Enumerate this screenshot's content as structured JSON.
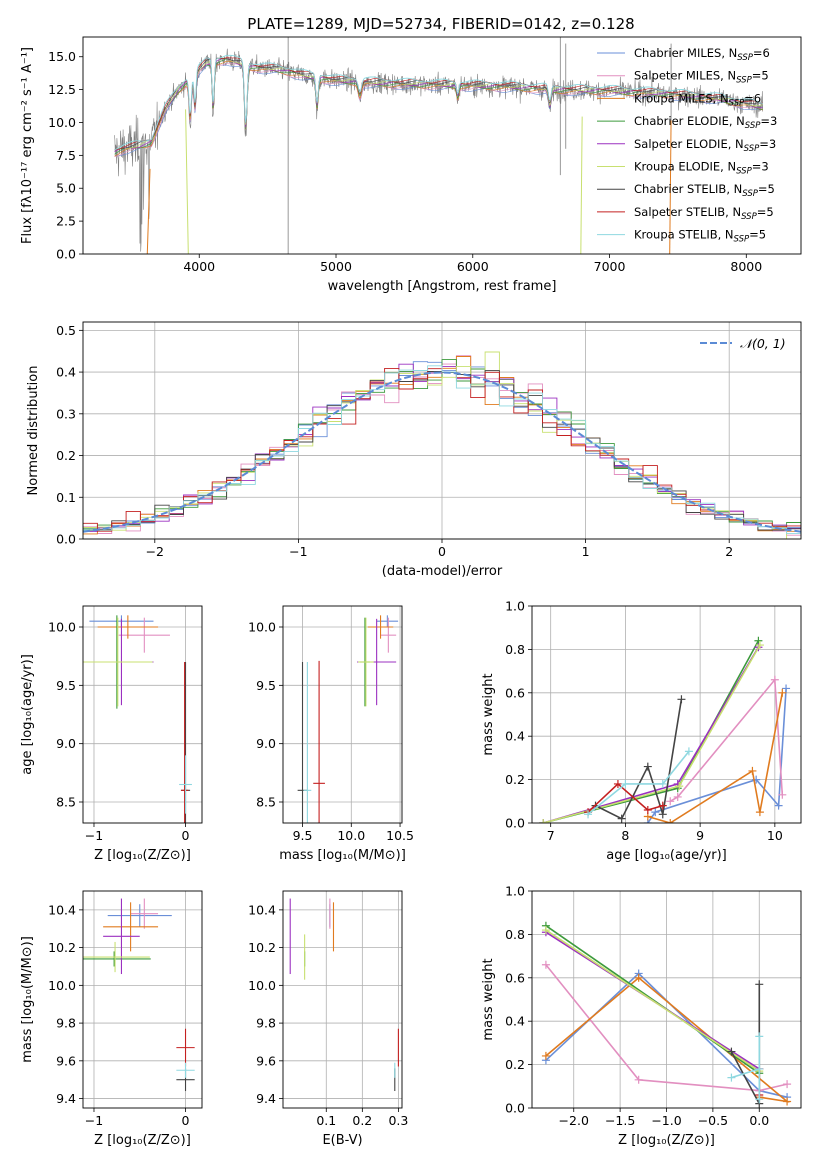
{
  "figure": {
    "title": "PLATE=1289, MJD=52734, FIBERID=0142, z=0.128"
  },
  "colors": {
    "Chabrier MILES": "#6a8fd8",
    "Salpeter MILES": "#e28fc0",
    "Kroupa MILES": "#e07b1f",
    "Chabrier ELODIE": "#3c9a3c",
    "Salpeter ELODIE": "#9b30c0",
    "Kroupa ELODIE": "#c8e070",
    "Chabrier STELIB": "#444444",
    "Salpeter STELIB": "#c42020",
    "Kroupa STELIB": "#8fd8e0",
    "gaussian": "#5b8bd5",
    "data": "#7f7f7f"
  },
  "chart_data": [
    {
      "id": "spectrum",
      "type": "line",
      "xlabel": "wavelength [Angstrom, rest frame]",
      "ylabel": "Flux [fλ10⁻¹⁷ erg cm⁻² s⁻¹ A⁻¹]",
      "xlim": [
        3150,
        8400
      ],
      "ylim": [
        0,
        16.5
      ],
      "xticks": [
        4000,
        5000,
        6000,
        7000,
        8000
      ],
      "yticks": [
        0.0,
        2.5,
        5.0,
        7.5,
        10.0,
        12.5,
        15.0
      ],
      "legend_position": "top-right",
      "legend": [
        {
          "label": "Chabrier MILES, N",
          "sub": "SSP",
          "tail": "=6"
        },
        {
          "label": "Salpeter MILES, N",
          "sub": "SSP",
          "tail": "=5"
        },
        {
          "label": "Kroupa MILES, N",
          "sub": "SSP",
          "tail": "=6"
        },
        {
          "label": "Chabrier ELODIE, N",
          "sub": "SSP",
          "tail": "=3"
        },
        {
          "label": "Salpeter ELODIE, N",
          "sub": "SSP",
          "tail": "=3"
        },
        {
          "label": "Kroupa ELODIE, N",
          "sub": "SSP",
          "tail": "=3"
        },
        {
          "label": "Chabrier STELIB, N",
          "sub": "SSP",
          "tail": "=5"
        },
        {
          "label": "Salpeter STELIB, N",
          "sub": "SSP",
          "tail": "=5"
        },
        {
          "label": "Kroupa STELIB, N",
          "sub": "SSP",
          "tail": "=5"
        }
      ],
      "continuum_x": [
        3350,
        3450,
        3550,
        3650,
        3750,
        3850,
        3950,
        4050,
        4200,
        4400,
        4600,
        4800,
        5000,
        5300,
        5600,
        6000,
        6300,
        6600,
        7000,
        7400,
        7800,
        8100
      ],
      "continuum_y": [
        7.6,
        8.0,
        8.2,
        8.5,
        11.0,
        12.5,
        13.5,
        14.5,
        14.8,
        14.2,
        14.0,
        13.5,
        13.2,
        13.0,
        12.9,
        12.8,
        12.7,
        12.5,
        12.4,
        12.2,
        11.8,
        11.2
      ],
      "model_edges": [
        [
          3640,
          3620
        ],
        [
          3900,
          3920
        ],
        [
          6800,
          6790
        ],
        [
          7450,
          7440
        ]
      ]
    },
    {
      "id": "residuals",
      "type": "step",
      "xlabel": "(data-model)/error",
      "ylabel": "Normed distribution",
      "xlim": [
        -2.5,
        2.5
      ],
      "ylim": [
        0,
        0.52
      ],
      "xticks": [
        -2,
        -1,
        0,
        1,
        2
      ],
      "yticks": [
        0.0,
        0.1,
        0.2,
        0.3,
        0.4,
        0.5
      ],
      "bin_width": 0.1,
      "legend": "𝒩(0, 1)"
    },
    {
      "id": "age_vs_Z",
      "type": "errorbar",
      "xlabel": "Z [log₁₀(Z/Z⊙)]",
      "ylabel": "age  [log₁₀(age/yr)]",
      "xlim": [
        -1.12,
        0.18
      ],
      "ylim": [
        8.32,
        10.18
      ],
      "xticks": [
        -1,
        0
      ],
      "yticks": [
        8.5,
        9.0,
        9.5,
        10.0
      ],
      "points": [
        {
          "s": "Chabrier MILES",
          "x": -0.7,
          "y": 10.05,
          "xe": 0.35,
          "ye": 0.05
        },
        {
          "s": "Salpeter MILES",
          "x": -0.45,
          "y": 9.93,
          "xe": 0.28,
          "ye": 0.15
        },
        {
          "s": "Kroupa MILES",
          "x": -0.63,
          "y": 10.0,
          "xe": 0.33,
          "ye": 0.1
        },
        {
          "s": "Chabrier ELODIE",
          "x": -0.75,
          "y": 9.7,
          "xe": 0.4,
          "ye": 0.4
        },
        {
          "s": "Salpeter ELODIE",
          "x": -0.7,
          "y": 9.7,
          "xe": 0.35,
          "ye": 0.37
        },
        {
          "s": "Kroupa ELODIE",
          "x": -0.74,
          "y": 9.7,
          "xe": 0.38,
          "ye": 0.38
        },
        {
          "s": "Chabrier STELIB",
          "x": 0.0,
          "y": 8.6,
          "xe": 0.05,
          "ye": 1.1
        },
        {
          "s": "Salpeter STELIB",
          "x": -0.01,
          "y": 8.6,
          "xe": 0.04,
          "ye": 1.1
        },
        {
          "s": "Kroupa STELIB",
          "x": 0.0,
          "y": 8.65,
          "xe": 0.07,
          "ye": 0.25
        }
      ]
    },
    {
      "id": "age_vs_mass",
      "type": "errorbar",
      "xlabel": "mass [log₁₀(M/M⊙)]",
      "ylabel": "",
      "xlim": [
        9.3,
        10.52
      ],
      "ylim": [
        8.32,
        10.18
      ],
      "xticks": [
        9.5,
        10.0,
        10.5
      ],
      "yticks": [
        8.5,
        9.0,
        9.5,
        10.0
      ],
      "points": [
        {
          "s": "Chabrier MILES",
          "x": 10.37,
          "y": 10.05,
          "xe": 0.11,
          "ye": 0.05
        },
        {
          "s": "Salpeter MILES",
          "x": 10.38,
          "y": 9.93,
          "xe": 0.08,
          "ye": 0.15
        },
        {
          "s": "Kroupa MILES",
          "x": 10.3,
          "y": 10.0,
          "xe": 0.13,
          "ye": 0.1
        },
        {
          "s": "Chabrier ELODIE",
          "x": 10.14,
          "y": 9.7,
          "xe": 0.05,
          "ye": 0.38
        },
        {
          "s": "Salpeter ELODIE",
          "x": 10.26,
          "y": 9.7,
          "xe": 0.2,
          "ye": 0.37
        },
        {
          "s": "Kroupa ELODIE",
          "x": 10.15,
          "y": 9.7,
          "xe": 0.08,
          "ye": 0.38
        },
        {
          "s": "Chabrier STELIB",
          "x": 9.5,
          "y": 8.6,
          "xe": 0.05,
          "ye": 1.1
        },
        {
          "s": "Salpeter STELIB",
          "x": 9.67,
          "y": 8.66,
          "xe": 0.06,
          "ye": 1.05
        },
        {
          "s": "Kroupa STELIB",
          "x": 9.55,
          "y": 8.6,
          "xe": 0.04,
          "ye": 1.1
        }
      ]
    },
    {
      "id": "weight_vs_age",
      "type": "line",
      "xlabel": "age  [log₁₀(age/yr)]",
      "ylabel": "mass weight",
      "xlim": [
        6.75,
        10.35
      ],
      "ylim": [
        0,
        1.0
      ],
      "xticks": [
        7,
        8,
        9,
        10
      ],
      "yticks": [
        0.0,
        0.2,
        0.4,
        0.6,
        0.8,
        1.0
      ],
      "series": [
        {
          "s": "Chabrier MILES",
          "x": [
            8.3,
            8.4,
            9.75,
            10.05,
            10.15
          ],
          "y": [
            0.0,
            0.05,
            0.2,
            0.08,
            0.62
          ]
        },
        {
          "s": "Salpeter MILES",
          "x": [
            8.6,
            8.7,
            10.0,
            10.1
          ],
          "y": [
            0.1,
            0.12,
            0.66,
            0.13
          ]
        },
        {
          "s": "Kroupa MILES",
          "x": [
            8.3,
            8.6,
            9.7,
            9.8,
            10.1
          ],
          "y": [
            0.03,
            0.0,
            0.24,
            0.05,
            0.6
          ]
        },
        {
          "s": "Chabrier ELODIE",
          "x": [
            6.9,
            8.7,
            9.78
          ],
          "y": [
            0.0,
            0.16,
            0.84
          ]
        },
        {
          "s": "Salpeter ELODIE",
          "x": [
            6.9,
            8.7,
            9.78
          ],
          "y": [
            0.0,
            0.18,
            0.81
          ]
        },
        {
          "s": "Kroupa ELODIE",
          "x": [
            6.9,
            8.72,
            9.8
          ],
          "y": [
            0.0,
            0.17,
            0.82
          ]
        },
        {
          "s": "Chabrier STELIB",
          "x": [
            7.6,
            7.95,
            8.3,
            8.5,
            8.75
          ],
          "y": [
            0.08,
            0.02,
            0.26,
            0.04,
            0.57
          ]
        },
        {
          "s": "Salpeter STELIB",
          "x": [
            7.5,
            7.9,
            8.3,
            8.5
          ],
          "y": [
            0.05,
            0.18,
            0.06,
            0.08
          ]
        },
        {
          "s": "Kroupa STELIB",
          "x": [
            7.5,
            8.0,
            8.5,
            8.85
          ],
          "y": [
            0.04,
            0.18,
            0.18,
            0.33
          ]
        }
      ]
    },
    {
      "id": "mass_vs_Z",
      "type": "errorbar",
      "xlabel": "Z [log₁₀(Z/Z⊙)]",
      "ylabel": "mass [log₁₀(M/M⊙)]",
      "xlim": [
        -1.12,
        0.18
      ],
      "ylim": [
        9.35,
        10.5
      ],
      "xticks": [
        -1,
        0
      ],
      "yticks": [
        9.4,
        9.6,
        9.8,
        10.0,
        10.2,
        10.4
      ],
      "points": [
        {
          "s": "Chabrier MILES",
          "x": -0.5,
          "y": 10.37,
          "xe": 0.35,
          "ye": 0.06
        },
        {
          "s": "Salpeter MILES",
          "x": -0.45,
          "y": 10.38,
          "xe": 0.15,
          "ye": 0.08
        },
        {
          "s": "Kroupa MILES",
          "x": -0.6,
          "y": 10.31,
          "xe": 0.3,
          "ye": 0.13
        },
        {
          "s": "Chabrier ELODIE",
          "x": -0.78,
          "y": 10.14,
          "xe": 0.4,
          "ye": 0.04
        },
        {
          "s": "Salpeter ELODIE",
          "x": -0.7,
          "y": 10.26,
          "xe": 0.2,
          "ye": 0.2
        },
        {
          "s": "Kroupa ELODIE",
          "x": -0.77,
          "y": 10.15,
          "xe": 0.38,
          "ye": 0.08
        },
        {
          "s": "Chabrier STELIB",
          "x": 0.0,
          "y": 9.5,
          "xe": 0.1,
          "ye": 0.06
        },
        {
          "s": "Salpeter STELIB",
          "x": 0.0,
          "y": 9.67,
          "xe": 0.1,
          "ye": 0.1
        },
        {
          "s": "Kroupa STELIB",
          "x": 0.0,
          "y": 9.55,
          "xe": 0.1,
          "ye": 0.04
        }
      ]
    },
    {
      "id": "mass_vs_ebv",
      "type": "errorbar",
      "xlabel": "E(B-V)",
      "ylabel": "",
      "xlim": [
        -0.02,
        0.31
      ],
      "ylim": [
        9.35,
        10.5
      ],
      "xticks": [
        0.1,
        0.2,
        0.3
      ],
      "yticks": [
        9.4,
        9.6,
        9.8,
        10.0,
        10.2,
        10.4
      ],
      "points": [
        {
          "s": "Chabrier MILES",
          "x": 0.11,
          "y": 10.37,
          "xe": 0.0,
          "ye": 0.06
        },
        {
          "s": "Salpeter MILES",
          "x": 0.11,
          "y": 10.38,
          "xe": 0.0,
          "ye": 0.08
        },
        {
          "s": "Kroupa MILES",
          "x": 0.12,
          "y": 10.31,
          "xe": 0.0,
          "ye": 0.13
        },
        {
          "s": "Chabrier ELODIE",
          "x": 0.04,
          "y": 10.14,
          "xe": 0.0,
          "ye": 0.04
        },
        {
          "s": "Salpeter ELODIE",
          "x": 0.0,
          "y": 10.26,
          "xe": 0.0,
          "ye": 0.2
        },
        {
          "s": "Kroupa ELODIE",
          "x": 0.04,
          "y": 10.15,
          "xe": 0.0,
          "ye": 0.12
        },
        {
          "s": "Chabrier STELIB",
          "x": 0.29,
          "y": 9.5,
          "xe": 0.0,
          "ye": 0.06
        },
        {
          "s": "Salpeter STELIB",
          "x": 0.3,
          "y": 9.67,
          "xe": 0.0,
          "ye": 0.1
        },
        {
          "s": "Kroupa STELIB",
          "x": 0.29,
          "y": 9.55,
          "xe": 0.0,
          "ye": 0.04
        }
      ]
    },
    {
      "id": "weight_vs_Z",
      "type": "line",
      "xlabel": "Z [log₁₀(Z/Z⊙)]",
      "ylabel": "mass weight",
      "xlim": [
        -2.45,
        0.45
      ],
      "ylim": [
        0,
        1.0
      ],
      "xticks": [
        -2.0,
        -1.5,
        -1.0,
        -0.5,
        0.0
      ],
      "yticks": [
        0.0,
        0.2,
        0.4,
        0.6,
        0.8,
        1.0
      ],
      "series": [
        {
          "s": "Chabrier MILES",
          "x": [
            -2.3,
            -1.3,
            0.0,
            0.3
          ],
          "y": [
            0.22,
            0.62,
            0.08,
            0.05
          ]
        },
        {
          "s": "Salpeter MILES",
          "x": [
            -2.3,
            -1.3,
            0.0,
            0.3
          ],
          "y": [
            0.66,
            0.13,
            0.08,
            0.11
          ]
        },
        {
          "s": "Kroupa MILES",
          "x": [
            -2.3,
            -1.3,
            0.3,
            0.0
          ],
          "y": [
            0.24,
            0.6,
            0.03,
            0.05
          ]
        },
        {
          "s": "Chabrier ELODIE",
          "x": [
            -2.3,
            0.0
          ],
          "y": [
            0.84,
            0.16
          ]
        },
        {
          "s": "Salpeter ELODIE",
          "x": [
            -2.3,
            0.0
          ],
          "y": [
            0.81,
            0.18
          ]
        },
        {
          "s": "Kroupa ELODIE",
          "x": [
            -2.3,
            0.0
          ],
          "y": [
            0.82,
            0.17
          ]
        },
        {
          "s": "Chabrier STELIB",
          "x": [
            -0.3,
            0.0,
            0.0
          ],
          "y": [
            0.26,
            0.02,
            0.57
          ]
        },
        {
          "s": "Salpeter STELIB",
          "x": [
            0.0,
            0.0
          ],
          "y": [
            0.18,
            0.06
          ]
        },
        {
          "s": "Kroupa STELIB",
          "x": [
            -0.3,
            0.0,
            0.0,
            0.0
          ],
          "y": [
            0.14,
            0.18,
            0.33,
            0.04
          ]
        }
      ]
    }
  ]
}
